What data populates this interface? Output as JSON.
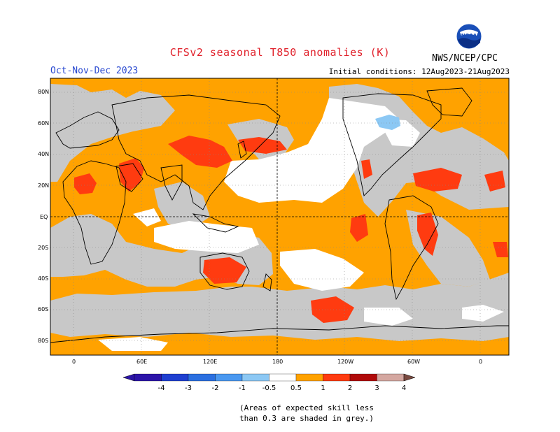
{
  "title": "CFSv2 seasonal T850 anomalies (K)",
  "period": "Oct-Nov-Dec 2023",
  "initial_conditions": "Initial conditions: 12Aug2023-21Aug2023",
  "agency": "NWS/NCEP/CPC",
  "logo_text": "NOAA",
  "lat_labels": [
    "80N",
    "60N",
    "40N",
    "20N",
    "EQ",
    "20S",
    "40S",
    "60S",
    "80S"
  ],
  "lon_labels": [
    "0",
    "60E",
    "120E",
    "180",
    "120W",
    "60W",
    "0"
  ],
  "colorbar": {
    "labels": [
      "-4",
      "-3",
      "-2",
      "-1",
      "-0.5",
      "0.5",
      "1",
      "2",
      "3",
      "4"
    ],
    "colors": [
      "#2c14a8",
      "#1f3fd0",
      "#2b6fe0",
      "#4a98f0",
      "#8cc8f4",
      "#ffffff",
      "#ffa200",
      "#ff3b10",
      "#b00a0a",
      "#d4a7a0",
      "#7a4a40"
    ]
  },
  "legend_colors": {
    "grey": "#c8c8c8",
    "orange": "#ffa200",
    "red": "#ff3b10",
    "blue": "#8cc8f4",
    "sea": "#ffffff"
  },
  "note": [
    "(Areas of expected skill less",
    "than 0.3 are shaded in grey.)"
  ]
}
